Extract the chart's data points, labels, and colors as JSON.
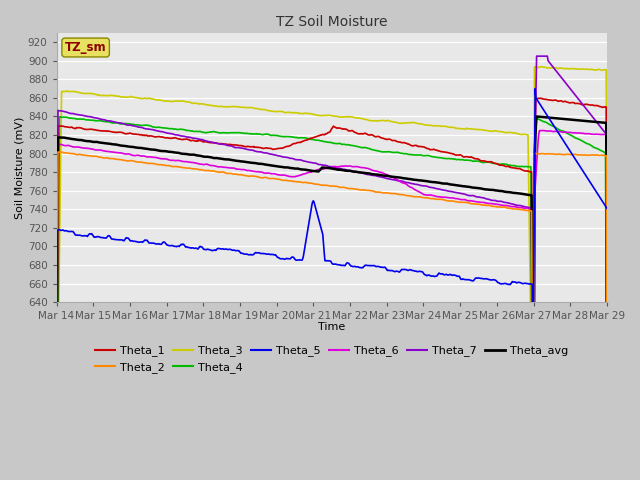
{
  "title": "TZ Soil Moisture",
  "xlabel": "Time",
  "ylabel": "Soil Moisture (mV)",
  "ylim": [
    640,
    930
  ],
  "yticks": [
    640,
    660,
    680,
    700,
    720,
    740,
    760,
    780,
    800,
    820,
    840,
    860,
    880,
    900,
    920
  ],
  "plot_bg": "#e8e8e8",
  "fig_bg": "#c8c8c8",
  "grid_color": "white",
  "series": {
    "Theta_1": {
      "color": "#cc0000",
      "lw": 1.2
    },
    "Theta_2": {
      "color": "#ff8800",
      "lw": 1.2
    },
    "Theta_3": {
      "color": "#cccc00",
      "lw": 1.2
    },
    "Theta_4": {
      "color": "#00bb00",
      "lw": 1.2
    },
    "Theta_5": {
      "color": "#0000ee",
      "lw": 1.2
    },
    "Theta_6": {
      "color": "#dd00dd",
      "lw": 1.2
    },
    "Theta_7": {
      "color": "#8800cc",
      "lw": 1.2
    },
    "Theta_avg": {
      "color": "#000000",
      "lw": 1.8
    }
  },
  "legend_label": "TZ_sm",
  "legend_label_color": "#8B0000",
  "legend_box_facecolor": "#e8e060",
  "legend_box_edgecolor": "#888800",
  "date_labels": [
    "Mar 14",
    "Mar 15",
    "Mar 16",
    "Mar 17",
    "Mar 18",
    "Mar 19",
    "Mar 20",
    "Mar 21",
    "Mar 22",
    "Mar 23",
    "Mar 24",
    "Mar 25",
    "Mar 26",
    "Mar 27",
    "Mar 28",
    "Mar 29"
  ],
  "legend_items": [
    {
      "label": "Theta_1",
      "color": "#cc0000"
    },
    {
      "label": "Theta_2",
      "color": "#ff8800"
    },
    {
      "label": "Theta_3",
      "color": "#cccc00"
    },
    {
      "label": "Theta_4",
      "color": "#00bb00"
    },
    {
      "label": "Theta_5",
      "color": "#0000ee"
    },
    {
      "label": "Theta_6",
      "color": "#dd00dd"
    },
    {
      "label": "Theta_7",
      "color": "#8800cc"
    },
    {
      "label": "Theta_avg",
      "color": "#000000"
    }
  ]
}
